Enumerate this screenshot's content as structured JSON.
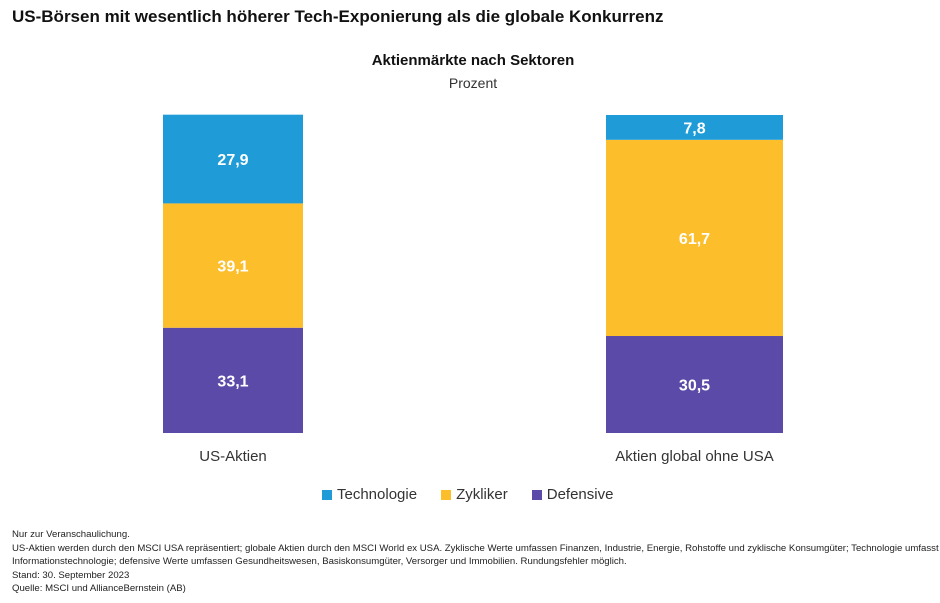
{
  "headline": "US-Börsen mit wesentlich höherer Tech-Exponierung als die globale Konkurrenz",
  "chart_data": {
    "type": "bar",
    "stacked": true,
    "title": "Aktienmärkte nach Sektoren",
    "subtitle": "Prozent",
    "categories": [
      "US-Aktien",
      "Aktien global ohne USA"
    ],
    "series": [
      {
        "name": "Defensive",
        "color": "#5b4aa8",
        "values": [
          33.1,
          30.5
        ],
        "labels": [
          "33,1",
          "30,5"
        ]
      },
      {
        "name": "Zykliker",
        "color": "#fdbe2b",
        "values": [
          39.1,
          61.7
        ],
        "labels": [
          "39,1",
          "61,7"
        ]
      },
      {
        "name": "Technologie",
        "color": "#1f9bd8",
        "values": [
          27.9,
          7.8
        ],
        "labels": [
          "27,9",
          "7,8"
        ]
      }
    ],
    "ylim": [
      0,
      100
    ],
    "grid": false,
    "legend_position": "bottom-center",
    "legend_order": [
      "Technologie",
      "Zykliker",
      "Defensive"
    ]
  },
  "notes": [
    "Nur zur Veranschaulichung.",
    "US-Aktien werden durch den MSCI USA repräsentiert; globale Aktien durch den MSCI World ex USA. Zyklische Werte umfassen Finanzen, Industrie, Energie, Rohstoffe und zyklische Konsumgüter; Technologie umfasst",
    "Informationstechnologie; defensive Werte umfassen Gesundheitswesen, Basiskonsumgüter, Versorger und Immobilien. Rundungsfehler möglich.",
    "Stand: 30. September 2023",
    "Quelle: MSCI und AllianceBernstein (AB)"
  ]
}
